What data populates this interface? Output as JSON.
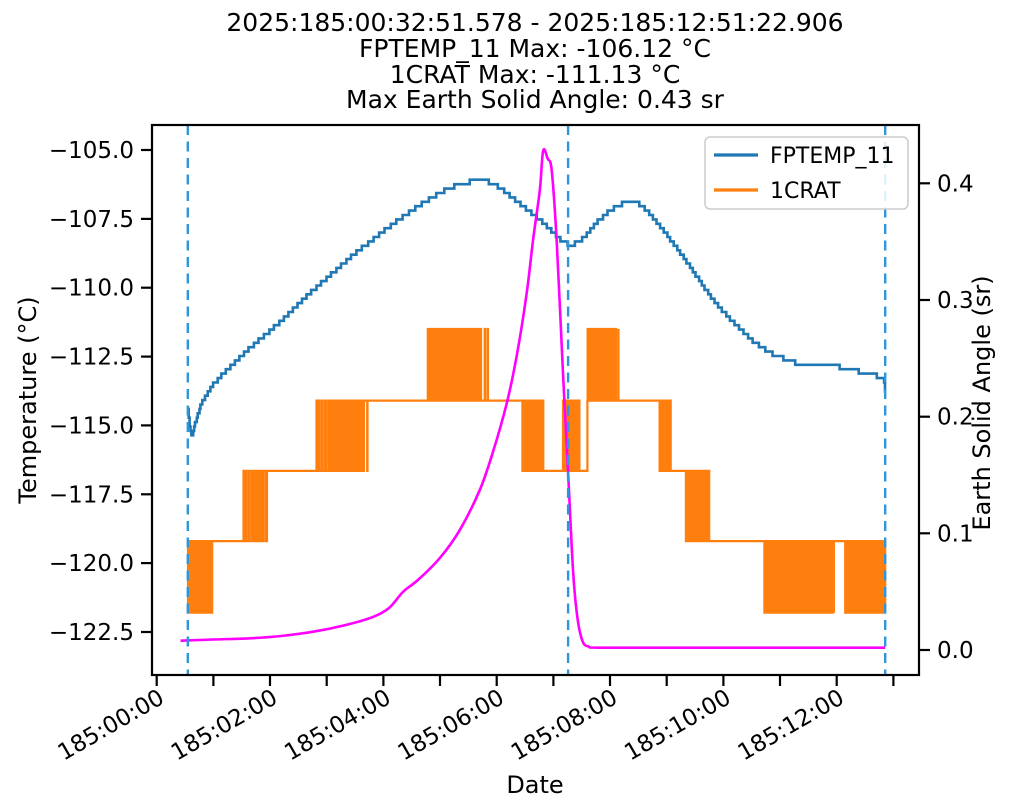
{
  "title": {
    "lines": [
      "2025:185:00:32:51.578 - 2025:185:12:51:22.906",
      "FPTEMP_11 Max: -106.12 °C",
      "1CRAT Max: -111.13 °C",
      "Max Earth Solid Angle: 0.43 sr"
    ]
  },
  "legend": {
    "items": [
      {
        "label": "FPTEMP_11",
        "color": "#1f77b4"
      },
      {
        "label": "1CRAT",
        "color": "#ff7f0e"
      }
    ]
  },
  "axes": {
    "x": {
      "label": "Date",
      "minor_ticks": [
        0,
        1,
        2,
        3,
        4,
        5,
        6,
        7,
        8,
        9,
        10,
        11,
        12,
        13
      ],
      "tick_labels": [
        {
          "h": 0,
          "label": "185:00:00"
        },
        {
          "h": 2,
          "label": "185:02:00"
        },
        {
          "h": 4,
          "label": "185:04:00"
        },
        {
          "h": 6,
          "label": "185:06:00"
        },
        {
          "h": 8,
          "label": "185:08:00"
        },
        {
          "h": 10,
          "label": "185:10:00"
        },
        {
          "h": 12,
          "label": "185:12:00"
        }
      ]
    },
    "y_left": {
      "label": "Temperature (°C)",
      "ticks": [
        -105.0,
        -107.5,
        -110.0,
        -112.5,
        -115.0,
        -117.5,
        -120.0,
        -122.5
      ]
    },
    "y_right": {
      "label": "Earth Solid Angle (sr)",
      "ticks": [
        0.0,
        0.1,
        0.2,
        0.3,
        0.4
      ]
    }
  },
  "chart_data": {
    "type": "line",
    "x_unit": "hours since 2025:185:00:00:00",
    "time_range": [
      "2025:185:00:32:51.578",
      "2025:185:12:51:22.906"
    ],
    "event_line_color": "#2e96dd",
    "event_lines_h": [
      0.548,
      7.26,
      12.856
    ],
    "series": [
      {
        "name": "FPTEMP_11",
        "color": "#1f77b4",
        "axis": "left",
        "style": "quantized_steps",
        "quantization_c": 0.16,
        "points": [
          [
            0.548,
            -114.35
          ],
          [
            0.58,
            -115.0
          ],
          [
            0.62,
            -115.45
          ],
          [
            0.66,
            -115.05
          ],
          [
            0.72,
            -114.6
          ],
          [
            0.8,
            -114.15
          ],
          [
            1.0,
            -113.5
          ],
          [
            1.25,
            -112.95
          ],
          [
            1.5,
            -112.45
          ],
          [
            1.75,
            -112.0
          ],
          [
            2.0,
            -111.55
          ],
          [
            2.25,
            -111.1
          ],
          [
            2.5,
            -110.6
          ],
          [
            2.75,
            -110.1
          ],
          [
            3.0,
            -109.65
          ],
          [
            3.25,
            -109.2
          ],
          [
            3.5,
            -108.75
          ],
          [
            3.75,
            -108.35
          ],
          [
            4.0,
            -107.95
          ],
          [
            4.25,
            -107.55
          ],
          [
            4.5,
            -107.2
          ],
          [
            4.75,
            -106.85
          ],
          [
            5.0,
            -106.55
          ],
          [
            5.2,
            -106.35
          ],
          [
            5.4,
            -106.2
          ],
          [
            5.6,
            -106.13
          ],
          [
            5.85,
            -106.16
          ],
          [
            6.0,
            -106.3
          ],
          [
            6.2,
            -106.6
          ],
          [
            6.5,
            -107.1
          ],
          [
            6.8,
            -107.6
          ],
          [
            7.0,
            -108.0
          ],
          [
            7.15,
            -108.3
          ],
          [
            7.3,
            -108.45
          ],
          [
            7.45,
            -108.35
          ],
          [
            7.6,
            -108.05
          ],
          [
            7.8,
            -107.55
          ],
          [
            8.0,
            -107.2
          ],
          [
            8.15,
            -107.0
          ],
          [
            8.3,
            -106.9
          ],
          [
            8.5,
            -106.95
          ],
          [
            8.7,
            -107.3
          ],
          [
            8.9,
            -107.8
          ],
          [
            9.1,
            -108.35
          ],
          [
            9.3,
            -108.9
          ],
          [
            9.5,
            -109.5
          ],
          [
            9.7,
            -110.1
          ],
          [
            9.9,
            -110.65
          ],
          [
            10.1,
            -111.1
          ],
          [
            10.3,
            -111.5
          ],
          [
            10.5,
            -111.9
          ],
          [
            10.7,
            -112.2
          ],
          [
            10.9,
            -112.45
          ],
          [
            11.1,
            -112.6
          ],
          [
            11.3,
            -112.75
          ],
          [
            11.6,
            -112.8
          ],
          [
            11.9,
            -112.82
          ],
          [
            12.1,
            -112.9
          ],
          [
            12.3,
            -113.0
          ],
          [
            12.5,
            -113.1
          ],
          [
            12.7,
            -113.2
          ],
          [
            12.82,
            -113.3
          ],
          [
            12.856,
            -113.75
          ]
        ]
      },
      {
        "name": "1CRAT",
        "color": "#ff7f0e",
        "axis": "left",
        "style": "telemetry_bursts",
        "levels": [
          -121.8,
          -119.2,
          -116.65,
          -114.1,
          -111.5
        ],
        "segments": [
          {
            "h0": 0.548,
            "h1": 0.98,
            "mode": "burst",
            "lo": -121.8,
            "hi": -119.2,
            "d0": 0.4,
            "d1": 0.75
          },
          {
            "h0": 0.98,
            "h1": 1.5,
            "mode": "steady",
            "level": -119.2
          },
          {
            "h0": 1.5,
            "h1": 1.97,
            "mode": "burst",
            "lo": -119.2,
            "hi": -116.65,
            "d0": 0.12,
            "d1": 0.85
          },
          {
            "h0": 1.97,
            "h1": 2.77,
            "mode": "steady",
            "level": -116.65
          },
          {
            "h0": 2.77,
            "h1": 3.72,
            "mode": "burst",
            "lo": -116.65,
            "hi": -114.1,
            "d0": 0.08,
            "d1": 0.85
          },
          {
            "h0": 3.72,
            "h1": 4.78,
            "mode": "steady",
            "level": -114.1
          },
          {
            "h0": 4.78,
            "h1": 5.86,
            "mode": "burst",
            "lo": -114.1,
            "hi": -111.5,
            "d0": 0.8,
            "d1": 0.05
          },
          {
            "h0": 5.86,
            "h1": 6.44,
            "mode": "steady",
            "level": -114.1
          },
          {
            "h0": 6.44,
            "h1": 6.84,
            "mode": "burst",
            "lo": -116.65,
            "hi": -114.1,
            "d0": 0.85,
            "d1": 0.1
          },
          {
            "h0": 6.84,
            "h1": 7.17,
            "mode": "steady",
            "level": -116.65
          },
          {
            "h0": 7.17,
            "h1": 7.46,
            "mode": "burst",
            "lo": -116.65,
            "hi": -114.1,
            "d0": 0.5,
            "d1": 0.5
          },
          {
            "h0": 7.46,
            "h1": 7.6,
            "mode": "steady",
            "level": -116.65
          },
          {
            "h0": 7.6,
            "h1": 8.15,
            "mode": "burst",
            "lo": -114.1,
            "hi": -111.5,
            "d0": 0.4,
            "d1": 0.5
          },
          {
            "h0": 8.15,
            "h1": 8.87,
            "mode": "steady",
            "level": -114.1
          },
          {
            "h0": 8.87,
            "h1": 9.07,
            "mode": "burst",
            "lo": -116.65,
            "hi": -114.1,
            "d0": 0.5,
            "d1": 0.2
          },
          {
            "h0": 9.07,
            "h1": 9.33,
            "mode": "steady",
            "level": -116.65
          },
          {
            "h0": 9.33,
            "h1": 9.8,
            "mode": "burst",
            "lo": -119.2,
            "hi": -116.65,
            "d0": 0.6,
            "d1": 0.15
          },
          {
            "h0": 9.8,
            "h1": 10.72,
            "mode": "steady",
            "level": -119.2
          },
          {
            "h0": 10.72,
            "h1": 11.95,
            "mode": "burst",
            "lo": -121.8,
            "hi": -119.2,
            "d0": 0.5,
            "d1": 0.55
          },
          {
            "h0": 11.95,
            "h1": 12.15,
            "mode": "steady",
            "level": -119.2
          },
          {
            "h0": 12.15,
            "h1": 12.856,
            "mode": "burst",
            "lo": -121.8,
            "hi": -119.2,
            "d0": 0.45,
            "d1": 0.6
          }
        ]
      },
      {
        "name": "Earth Solid Angle",
        "color": "#ff00ff",
        "axis": "right",
        "style": "smooth",
        "points": [
          [
            0.42,
            0.008
          ],
          [
            1.0,
            0.009
          ],
          [
            1.65,
            0.01
          ],
          [
            2.2,
            0.012
          ],
          [
            2.8,
            0.016
          ],
          [
            3.3,
            0.021
          ],
          [
            3.8,
            0.028
          ],
          [
            4.1,
            0.036
          ],
          [
            4.35,
            0.05
          ],
          [
            4.61,
            0.06
          ],
          [
            5.0,
            0.079
          ],
          [
            5.35,
            0.103
          ],
          [
            5.7,
            0.137
          ],
          [
            5.93,
            0.169
          ],
          [
            6.18,
            0.212
          ],
          [
            6.36,
            0.254
          ],
          [
            6.53,
            0.306
          ],
          [
            6.64,
            0.351
          ],
          [
            6.76,
            0.394
          ],
          [
            6.82,
            0.428
          ],
          [
            6.9,
            0.421
          ],
          [
            6.97,
            0.411
          ],
          [
            7.06,
            0.349
          ],
          [
            7.17,
            0.237
          ],
          [
            7.26,
            0.152
          ],
          [
            7.35,
            0.066
          ],
          [
            7.43,
            0.026
          ],
          [
            7.52,
            0.007
          ],
          [
            7.62,
            0.003
          ],
          [
            7.8,
            0.002
          ],
          [
            9.0,
            0.002
          ],
          [
            11.0,
            0.002
          ],
          [
            12.856,
            0.002
          ]
        ]
      }
    ]
  }
}
